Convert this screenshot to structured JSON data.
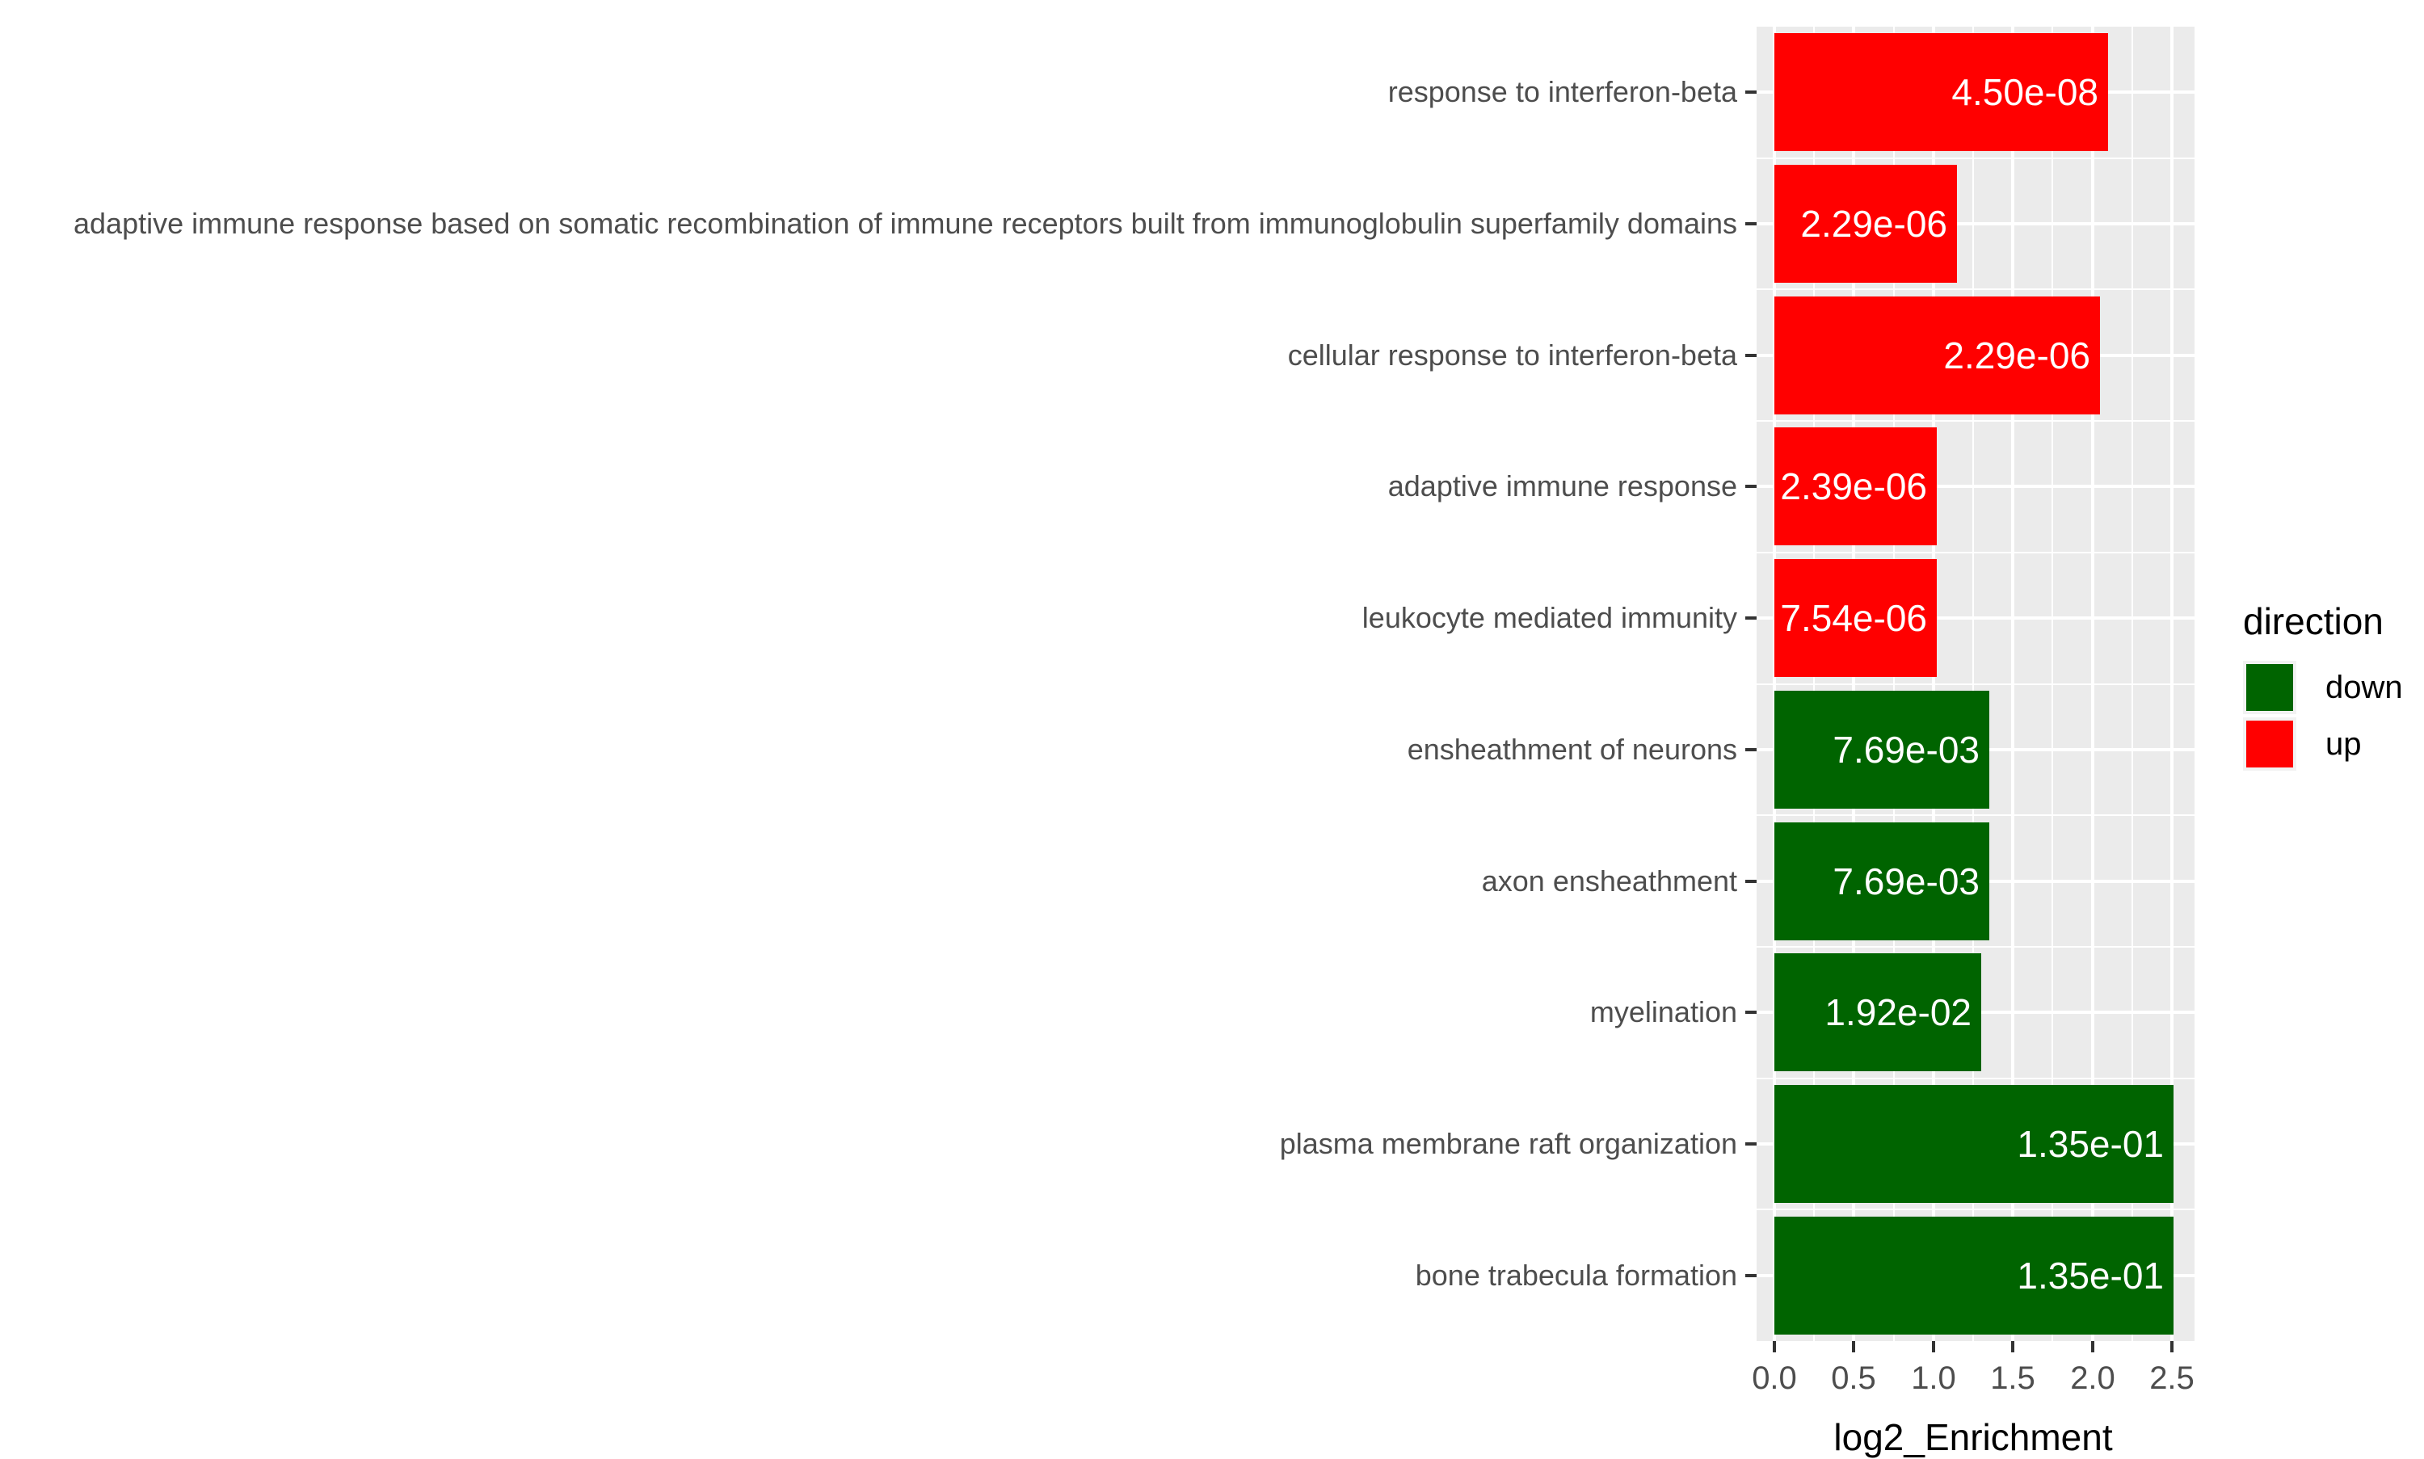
{
  "chart_data": {
    "type": "bar",
    "orientation": "horizontal",
    "title": "",
    "xlabel": "log2_Enrichment",
    "ylabel": "",
    "xlim": [
      0,
      2.5
    ],
    "xtick_values": [
      0,
      0.5,
      1.0,
      1.5,
      2.0,
      2.5
    ],
    "xtick_labels": [
      "0.0",
      "0.5",
      "1.0",
      "1.5",
      "2.0",
      "2.5"
    ],
    "minor_xtick_values": [
      0.25,
      0.75,
      1.25,
      1.75,
      2.25
    ],
    "grid": "white major and minor gridlines on grey panel",
    "legend_position": "right",
    "legend_title": "direction",
    "legend_items": [
      {
        "label": "down",
        "color": "#006400"
      },
      {
        "label": "up",
        "color": "#FF0000"
      }
    ],
    "categories": [
      "response to interferon-beta",
      "adaptive immune response based on somatic recombination of immune receptors built from immunoglobulin superfamily domains",
      "cellular response to interferon-beta",
      "adaptive immune response",
      "leukocyte mediated immunity",
      "ensheathment of neurons",
      "axon ensheathment",
      "myelination",
      "plasma membrane raft organization",
      "bone trabecula formation"
    ],
    "series": [
      {
        "name": "log2_Enrichment",
        "values": [
          2.1,
          1.15,
          2.05,
          1.02,
          1.02,
          1.35,
          1.35,
          1.3,
          2.51,
          2.51
        ],
        "directions": [
          "up",
          "up",
          "up",
          "up",
          "up",
          "down",
          "down",
          "down",
          "down",
          "down"
        ],
        "bar_labels": [
          "4.50e-08",
          "2.29e-06",
          "2.29e-06",
          "2.39e-06",
          "7.54e-06",
          "7.69e-03",
          "7.69e-03",
          "1.92e-02",
          "1.35e-01",
          "1.35e-01"
        ]
      }
    ],
    "colors": {
      "up": "#FF0000",
      "down": "#006400",
      "panel_background": "#EBEBEB",
      "gridline": "#FFFFFF",
      "axis_text": "#4D4D4D",
      "tick_mark": "#333333",
      "bar_label_text": "#FFFFFF",
      "axis_title": "#000000"
    }
  }
}
